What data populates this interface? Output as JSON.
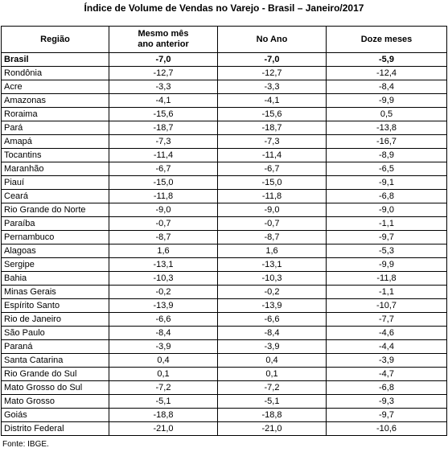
{
  "title": "Índice de Volume de Vendas no Varejo - Brasil – Janeiro/2017",
  "table": {
    "header": [
      "Região",
      "Mesmo mês\nano anterior",
      "No Ano",
      "Doze meses"
    ],
    "rows": [
      [
        "Brasil",
        "-7,0",
        "-7,0",
        "-5,9"
      ],
      [
        "Rondônia",
        "-12,7",
        "-12,7",
        "-12,4"
      ],
      [
        "Acre",
        "-3,3",
        "-3,3",
        "-8,4"
      ],
      [
        "Amazonas",
        "-4,1",
        "-4,1",
        "-9,9"
      ],
      [
        "Roraima",
        "-15,6",
        "-15,6",
        "0,5"
      ],
      [
        "Pará",
        "-18,7",
        "-18,7",
        "-13,8"
      ],
      [
        "Amapá",
        "-7,3",
        "-7,3",
        "-16,7"
      ],
      [
        "Tocantins",
        "-11,4",
        "-11,4",
        "-8,9"
      ],
      [
        "Maranhão",
        "-6,7",
        "-6,7",
        "-6,5"
      ],
      [
        "Piauí",
        "-15,0",
        "-15,0",
        "-9,1"
      ],
      [
        "Ceará",
        "-11,8",
        "-11,8",
        "-6,8"
      ],
      [
        "Rio Grande do Norte",
        "-9,0",
        "-9,0",
        "-9,0"
      ],
      [
        "Paraíba",
        "-0,7",
        "-0,7",
        "-1,1"
      ],
      [
        "Pernambuco",
        "-8,7",
        "-8,7",
        "-9,7"
      ],
      [
        "Alagoas",
        "1,6",
        "1,6",
        "-5,3"
      ],
      [
        "Sergipe",
        "-13,1",
        "-13,1",
        "-9,9"
      ],
      [
        "Bahia",
        "-10,3",
        "-10,3",
        "-11,8"
      ],
      [
        "Minas Gerais",
        "-0,2",
        "-0,2",
        "-1,1"
      ],
      [
        "Espírito Santo",
        "-13,9",
        "-13,9",
        "-10,7"
      ],
      [
        "Rio de Janeiro",
        "-6,6",
        "-6,6",
        "-7,7"
      ],
      [
        "São Paulo",
        "-8,4",
        "-8,4",
        "-4,6"
      ],
      [
        "Paraná",
        "-3,9",
        "-3,9",
        "-4,4"
      ],
      [
        "Santa Catarina",
        "0,4",
        "0,4",
        "-3,9"
      ],
      [
        "Rio Grande do Sul",
        "0,1",
        "0,1",
        "-4,7"
      ],
      [
        "Mato Grosso do Sul",
        "-7,2",
        "-7,2",
        "-6,8"
      ],
      [
        "Mato Grosso",
        "-5,1",
        "-5,1",
        "-9,3"
      ],
      [
        "Goiás",
        "-18,8",
        "-18,8",
        "-9,7"
      ],
      [
        "Distrito Federal",
        "-21,0",
        "-21,0",
        "-10,6"
      ]
    ]
  },
  "source": "Fonte: IBGE."
}
